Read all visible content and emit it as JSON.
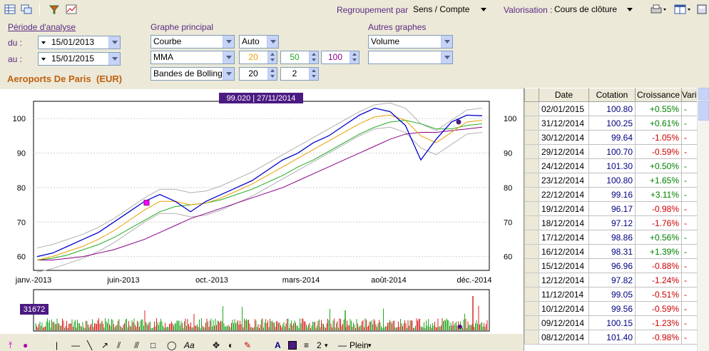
{
  "toolbar": {
    "grouping_label": "Regroupement par :",
    "grouping_value": "Sens / Compte",
    "valuation_label": "Valorisation :",
    "valuation_value": "Cours de clôture"
  },
  "analysis": {
    "title": "Période d'analyse",
    "from_label": "du :",
    "from_value": "15/01/2013",
    "to_label": "au :",
    "to_value": "15/01/2015"
  },
  "main_chart": {
    "title": "Graphe principal",
    "type_value": "Courbe",
    "scale_value": "Auto",
    "indicator_value": "MMA",
    "mma_periods": [
      "20",
      "50",
      "100"
    ],
    "bands_value": "Bandes de Bollinger",
    "bands_period": "20",
    "bands_width": "2"
  },
  "other_charts": {
    "title": "Autres graphes",
    "first_value": "Volume",
    "second_value": ""
  },
  "instrument": {
    "name": "Aeroports De Paris",
    "currency": "(EUR)"
  },
  "chart_data": {
    "type": "line",
    "cursor_label": "99.020  |  27/11/2014",
    "volume_label": "31672",
    "x_ticks": [
      "janv.-2013",
      "juin-2013",
      "oct.-2013",
      "mars-2014",
      "août-2014",
      "déc.-2014"
    ],
    "y_ticks": [
      "100",
      "90",
      "80",
      "70",
      "60"
    ],
    "ylim": [
      56,
      105
    ],
    "series": [
      {
        "values": [
          60,
          61,
          63,
          65,
          67,
          70,
          73,
          76,
          78,
          76,
          73,
          76,
          78,
          80,
          82,
          85,
          88,
          90,
          93,
          95,
          98,
          101,
          103,
          102,
          98,
          88,
          94,
          99,
          101,
          100.8
        ]
      },
      {
        "values": [
          59,
          60,
          61.5,
          63,
          65,
          67.5,
          70.5,
          73.5,
          76,
          76,
          75,
          75.5,
          77,
          79,
          81,
          83.5,
          86,
          88.5,
          91,
          93.5,
          96,
          98.5,
          100.5,
          101,
          99.5,
          95,
          93,
          96,
          99,
          99.5
        ]
      },
      {
        "values": [
          59,
          59.5,
          60.5,
          62,
          63.5,
          65.5,
          68,
          70.5,
          73,
          74.5,
          75,
          75.5,
          76.5,
          78,
          79.5,
          81.5,
          83.5,
          86,
          88,
          90.5,
          93,
          95.5,
          97.5,
          99,
          99.5,
          98.5,
          97,
          97,
          98,
          98.5
        ]
      },
      {
        "values": [
          59,
          59,
          59.5,
          60,
          61,
          62,
          63.5,
          65,
          67,
          69,
          71,
          72.5,
          74,
          75.5,
          77,
          78.5,
          80,
          82,
          84,
          86,
          88,
          90,
          92,
          94,
          95.5,
          96,
          96,
          96.5,
          97,
          97.5
        ]
      }
    ],
    "colors": {
      "price": "#0000cc",
      "mma20": "#e8a000",
      "mma50": "#22aa22",
      "mma100": "#880088",
      "bands": "#b0b0b0"
    }
  },
  "table": {
    "headers": [
      "Date",
      "Cotation",
      "Croissance",
      "Varia"
    ],
    "rows": [
      {
        "date": "02/01/2015",
        "cot": "100.80",
        "cro": "+0.55%"
      },
      {
        "date": "31/12/2014",
        "cot": "100.25",
        "cro": "+0.61%"
      },
      {
        "date": "30/12/2014",
        "cot": "99.64",
        "cro": "-1.05%"
      },
      {
        "date": "29/12/2014",
        "cot": "100.70",
        "cro": "-0.59%"
      },
      {
        "date": "24/12/2014",
        "cot": "101.30",
        "cro": "+0.50%"
      },
      {
        "date": "23/12/2014",
        "cot": "100.80",
        "cro": "+1.65%"
      },
      {
        "date": "22/12/2014",
        "cot": "99.16",
        "cro": "+3.11%"
      },
      {
        "date": "19/12/2014",
        "cot": "96.17",
        "cro": "-0.98%"
      },
      {
        "date": "18/12/2014",
        "cot": "97.12",
        "cro": "-1.76%"
      },
      {
        "date": "17/12/2014",
        "cot": "98.86",
        "cro": "+0.56%"
      },
      {
        "date": "16/12/2014",
        "cot": "98.31",
        "cro": "+1.39%"
      },
      {
        "date": "15/12/2014",
        "cot": "96.96",
        "cro": "-0.88%"
      },
      {
        "date": "12/12/2014",
        "cot": "97.82",
        "cro": "-1.24%"
      },
      {
        "date": "11/12/2014",
        "cot": "99.05",
        "cro": "-0.51%"
      },
      {
        "date": "10/12/2014",
        "cot": "99.56",
        "cro": "-0.59%"
      },
      {
        "date": "09/12/2014",
        "cot": "100.15",
        "cro": "-1.23%"
      },
      {
        "date": "08/12/2014",
        "cot": "101.40",
        "cro": "-0.98%"
      }
    ]
  },
  "bottom_toolbar": {
    "line_width": "2",
    "line_style": "Plein"
  }
}
